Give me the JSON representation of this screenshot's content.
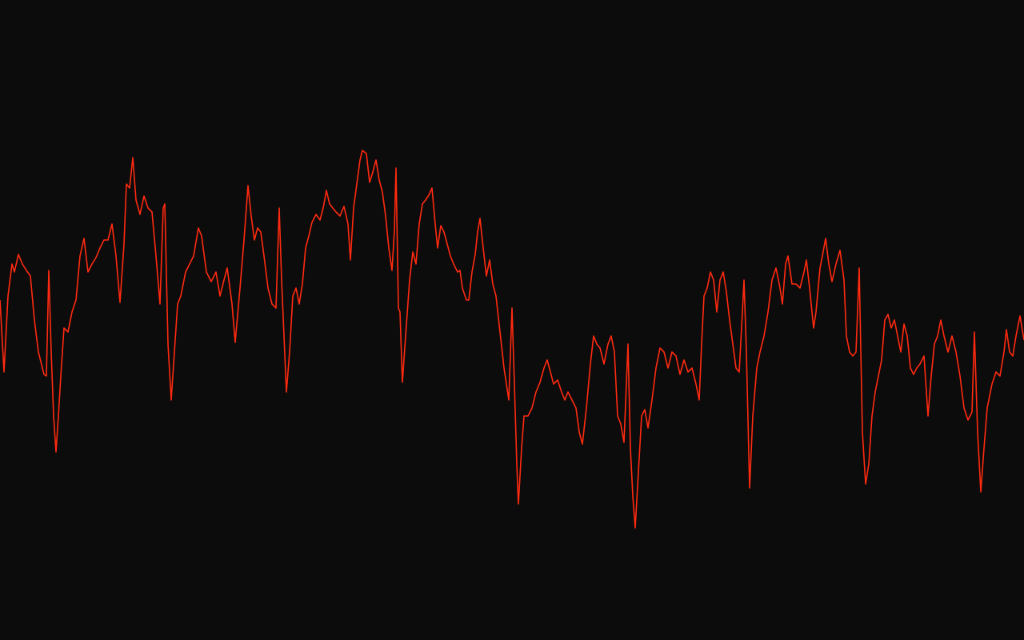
{
  "chart_data": {
    "type": "line",
    "title": "",
    "xlabel": "",
    "ylabel": "",
    "xlim": [
      0,
      128
    ],
    "ylim": [
      0,
      80
    ],
    "grid": false,
    "legend": "none",
    "colors": {
      "background": "#0c0c0c",
      "line": "#ff2a10"
    },
    "points": [
      [
        0,
        42.5
      ],
      [
        0.5,
        33.5
      ],
      [
        1,
        43
      ],
      [
        1.5,
        47
      ],
      [
        1.8,
        46
      ],
      [
        2.3,
        48.2
      ],
      [
        2.8,
        47
      ],
      [
        3.3,
        46.2
      ],
      [
        3.8,
        45.5
      ],
      [
        4.3,
        40
      ],
      [
        4.8,
        36
      ],
      [
        5.5,
        33.2
      ],
      [
        5.8,
        33
      ],
      [
        6.1,
        46.2
      ],
      [
        6.4,
        36
      ],
      [
        6.7,
        28
      ],
      [
        7,
        23.5
      ],
      [
        7.3,
        28
      ],
      [
        7.6,
        33
      ],
      [
        8,
        39
      ],
      [
        8.5,
        38.5
      ],
      [
        9,
        41
      ],
      [
        9.5,
        42.5
      ],
      [
        10,
        48
      ],
      [
        10.5,
        50.2
      ],
      [
        11,
        46
      ],
      [
        11.5,
        47
      ],
      [
        12,
        47.8
      ],
      [
        12.5,
        49
      ],
      [
        13,
        50
      ],
      [
        13.5,
        50
      ],
      [
        14,
        52
      ],
      [
        14.5,
        48
      ],
      [
        15,
        42.2
      ],
      [
        15.5,
        49.5
      ],
      [
        15.8,
        57
      ],
      [
        16.2,
        56.5
      ],
      [
        16.6,
        60.3
      ],
      [
        17,
        55
      ],
      [
        17.5,
        53.2
      ],
      [
        18,
        55.5
      ],
      [
        18.5,
        54
      ],
      [
        19,
        53.5
      ],
      [
        19.5,
        48
      ],
      [
        20,
        42
      ],
      [
        20.4,
        54
      ],
      [
        20.6,
        54.5
      ],
      [
        21,
        37
      ],
      [
        21.4,
        30
      ],
      [
        21.8,
        36
      ],
      [
        22.2,
        42
      ],
      [
        22.6,
        43
      ],
      [
        23.2,
        46
      ],
      [
        23.7,
        47
      ],
      [
        24.2,
        48
      ],
      [
        24.8,
        51.5
      ],
      [
        25.2,
        50.5
      ],
      [
        25.8,
        46
      ],
      [
        26.4,
        44.8
      ],
      [
        27,
        46
      ],
      [
        27.5,
        43
      ],
      [
        28,
        45
      ],
      [
        28.4,
        46.5
      ],
      [
        29,
        42
      ],
      [
        29.4,
        37.2
      ],
      [
        30,
        44
      ],
      [
        30.5,
        50
      ],
      [
        31,
        56.8
      ],
      [
        31.4,
        53
      ],
      [
        31.8,
        50
      ],
      [
        32.2,
        51.5
      ],
      [
        32.6,
        51
      ],
      [
        33,
        48
      ],
      [
        33.5,
        44
      ],
      [
        34,
        42
      ],
      [
        34.5,
        41.5
      ],
      [
        34.9,
        54
      ],
      [
        35.2,
        45
      ],
      [
        35.5,
        38
      ],
      [
        35.8,
        31
      ],
      [
        36.2,
        36
      ],
      [
        36.6,
        43
      ],
      [
        37,
        44
      ],
      [
        37.4,
        42
      ],
      [
        37.8,
        44.5
      ],
      [
        38.2,
        49
      ],
      [
        38.6,
        50.5
      ],
      [
        39,
        52.2
      ],
      [
        39.5,
        53.2
      ],
      [
        40,
        52.5
      ],
      [
        40.4,
        54
      ],
      [
        40.8,
        56.2
      ],
      [
        41.2,
        54.5
      ],
      [
        41.6,
        54
      ],
      [
        42,
        53.5
      ],
      [
        42.5,
        53
      ],
      [
        43,
        54.2
      ],
      [
        43.5,
        52
      ],
      [
        43.8,
        47.5
      ],
      [
        44.2,
        54
      ],
      [
        44.6,
        57
      ],
      [
        45,
        60
      ],
      [
        45.3,
        61.2
      ],
      [
        45.8,
        60.8
      ],
      [
        46.2,
        57.2
      ],
      [
        46.6,
        58.5
      ],
      [
        47,
        60
      ],
      [
        47.4,
        57.5
      ],
      [
        47.8,
        56
      ],
      [
        48.2,
        53
      ],
      [
        48.6,
        49
      ],
      [
        49,
        46.2
      ],
      [
        49.3,
        51.2
      ],
      [
        49.5,
        59
      ],
      [
        49.8,
        41.5
      ],
      [
        50,
        41
      ],
      [
        50.3,
        32.2
      ],
      [
        50.7,
        38
      ],
      [
        51.2,
        45
      ],
      [
        51.6,
        48.5
      ],
      [
        52,
        47
      ],
      [
        52.4,
        52
      ],
      [
        52.8,
        54.5
      ],
      [
        53.2,
        55
      ],
      [
        53.6,
        55.6
      ],
      [
        54,
        56.5
      ],
      [
        54.4,
        52
      ],
      [
        54.7,
        49
      ],
      [
        55.1,
        51.8
      ],
      [
        55.5,
        51
      ],
      [
        55.9,
        49.5
      ],
      [
        56.3,
        48
      ],
      [
        56.7,
        47
      ],
      [
        57.2,
        46
      ],
      [
        57.5,
        46.2
      ],
      [
        57.8,
        44
      ],
      [
        58.3,
        42.5
      ],
      [
        58.6,
        42.5
      ],
      [
        59,
        46
      ],
      [
        59.4,
        48.2
      ],
      [
        59.7,
        51
      ],
      [
        60,
        52.7
      ],
      [
        60.4,
        49
      ],
      [
        60.8,
        45.5
      ],
      [
        61.2,
        47.5
      ],
      [
        61.6,
        44.5
      ],
      [
        62,
        43
      ],
      [
        62.5,
        38.5
      ],
      [
        63,
        34
      ],
      [
        63.6,
        30
      ],
      [
        64,
        41.5
      ],
      [
        64.3,
        32
      ],
      [
        64.6,
        22
      ],
      [
        64.8,
        17
      ],
      [
        65.2,
        24
      ],
      [
        65.5,
        28
      ],
      [
        66,
        28
      ],
      [
        66.5,
        29
      ],
      [
        67,
        31
      ],
      [
        67.5,
        32.2
      ],
      [
        68,
        34
      ],
      [
        68.4,
        35
      ],
      [
        68.8,
        33.5
      ],
      [
        69.2,
        32
      ],
      [
        69.7,
        32.5
      ],
      [
        70.2,
        31
      ],
      [
        70.6,
        30
      ],
      [
        71,
        31
      ],
      [
        71.5,
        30
      ],
      [
        72,
        29
      ],
      [
        72.4,
        26
      ],
      [
        72.8,
        24.5
      ],
      [
        73.3,
        29
      ],
      [
        73.8,
        34.5
      ],
      [
        74.2,
        38
      ],
      [
        74.6,
        37
      ],
      [
        75,
        36.5
      ],
      [
        75.5,
        34.5
      ],
      [
        76,
        37
      ],
      [
        76.4,
        38
      ],
      [
        76.8,
        36
      ],
      [
        77.2,
        28
      ],
      [
        77.6,
        27
      ],
      [
        78,
        24.7
      ],
      [
        78.5,
        37
      ],
      [
        78.8,
        24
      ],
      [
        79.1,
        18
      ],
      [
        79.4,
        14
      ],
      [
        79.8,
        21
      ],
      [
        80.2,
        28
      ],
      [
        80.6,
        28.8
      ],
      [
        81,
        26.5
      ],
      [
        81.5,
        30
      ],
      [
        82,
        34
      ],
      [
        82.5,
        36.5
      ],
      [
        83,
        36
      ],
      [
        83.5,
        34
      ],
      [
        84,
        36
      ],
      [
        84.5,
        35.5
      ],
      [
        85,
        33.2
      ],
      [
        85.5,
        35
      ],
      [
        86,
        33.5
      ],
      [
        86.5,
        34
      ],
      [
        87,
        32
      ],
      [
        87.4,
        30
      ],
      [
        87.7,
        37
      ],
      [
        88,
        43
      ],
      [
        88.4,
        44
      ],
      [
        88.8,
        46
      ],
      [
        89.2,
        45
      ],
      [
        89.6,
        41
      ],
      [
        90,
        45
      ],
      [
        90.4,
        46
      ],
      [
        90.8,
        43.5
      ],
      [
        91.2,
        40
      ],
      [
        91.6,
        37
      ],
      [
        92,
        34
      ],
      [
        92.4,
        33.5
      ],
      [
        92.8,
        41
      ],
      [
        93,
        45
      ],
      [
        93.3,
        36
      ],
      [
        93.7,
        19
      ],
      [
        94.1,
        28
      ],
      [
        94.6,
        34
      ],
      [
        95,
        36
      ],
      [
        95.5,
        38
      ],
      [
        96,
        41
      ],
      [
        96.5,
        45
      ],
      [
        97,
        46.5
      ],
      [
        97.5,
        44
      ],
      [
        97.8,
        42
      ],
      [
        98.2,
        47
      ],
      [
        98.5,
        48
      ],
      [
        99,
        44.5
      ],
      [
        99.5,
        44.5
      ],
      [
        100,
        44
      ],
      [
        100.5,
        46
      ],
      [
        100.8,
        47.5
      ],
      [
        101.2,
        44
      ],
      [
        101.7,
        39
      ],
      [
        102,
        41
      ],
      [
        102.5,
        46.5
      ],
      [
        102.8,
        48
      ],
      [
        103.2,
        50.2
      ],
      [
        103.6,
        47
      ],
      [
        104,
        44.8
      ],
      [
        104.5,
        47
      ],
      [
        105,
        48.7
      ],
      [
        105.5,
        45
      ],
      [
        105.8,
        38
      ],
      [
        106.2,
        36
      ],
      [
        106.6,
        35.5
      ],
      [
        107,
        36
      ],
      [
        107.4,
        46.5
      ],
      [
        107.8,
        26
      ],
      [
        108.2,
        19.5
      ],
      [
        108.6,
        22
      ],
      [
        109,
        28
      ],
      [
        109.4,
        31
      ],
      [
        109.8,
        33
      ],
      [
        110.2,
        35
      ],
      [
        110.6,
        40
      ],
      [
        111,
        40.7
      ],
      [
        111.4,
        39
      ],
      [
        111.8,
        40
      ],
      [
        112.2,
        38
      ],
      [
        112.6,
        36
      ],
      [
        113,
        39.5
      ],
      [
        113.4,
        38
      ],
      [
        113.8,
        34
      ],
      [
        114.2,
        33.2
      ],
      [
        114.6,
        34
      ],
      [
        115,
        34.5
      ],
      [
        115.5,
        35.5
      ],
      [
        116,
        28
      ],
      [
        116.4,
        33
      ],
      [
        116.8,
        37
      ],
      [
        117.2,
        38
      ],
      [
        117.6,
        40
      ],
      [
        118,
        38
      ],
      [
        118.5,
        36
      ],
      [
        119,
        38
      ],
      [
        119.5,
        36
      ],
      [
        120,
        33
      ],
      [
        120.5,
        29
      ],
      [
        121,
        27.5
      ],
      [
        121.5,
        28.5
      ],
      [
        121.8,
        38.5
      ],
      [
        122.2,
        26
      ],
      [
        122.6,
        18.5
      ],
      [
        123,
        24
      ],
      [
        123.4,
        29
      ],
      [
        124,
        32
      ],
      [
        124.5,
        33.5
      ],
      [
        125,
        33
      ],
      [
        125.5,
        36
      ],
      [
        125.8,
        38.8
      ],
      [
        126.2,
        36
      ],
      [
        126.6,
        35.5
      ],
      [
        127,
        38
      ],
      [
        127.5,
        40.5
      ],
      [
        128,
        37.5
      ]
    ]
  }
}
